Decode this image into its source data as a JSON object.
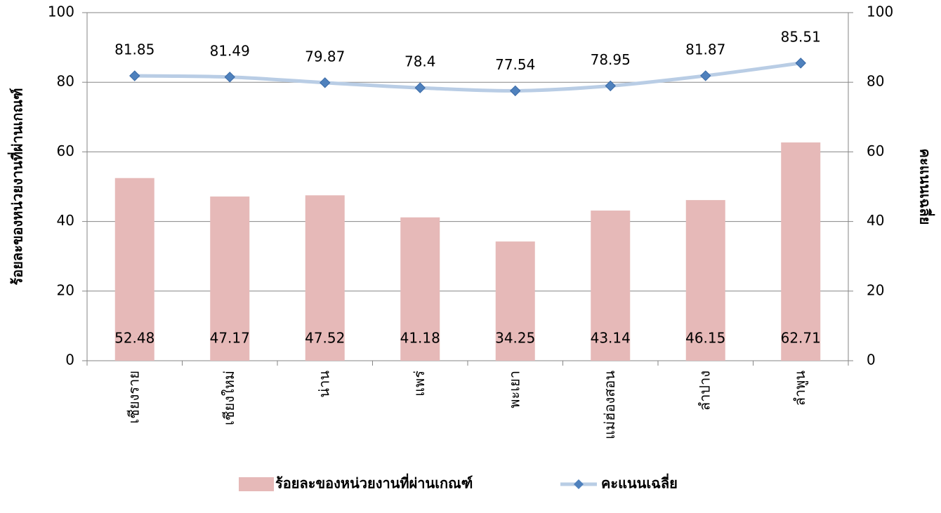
{
  "chart_data": {
    "type": "bar",
    "categories": [
      "เชียงราย",
      "เชียงใหม่",
      "น่าน",
      "แพร่",
      "พะเยา",
      "แม่ฮ่องสอน",
      "ลำปาง",
      "ลำพูน"
    ],
    "series": [
      {
        "name": "ร้อยละของหน่วยงานที่ผ่านเกณฑ์",
        "type": "bar",
        "color": "#e6b9b8",
        "values": [
          52.48,
          47.17,
          47.52,
          41.18,
          34.25,
          43.14,
          46.15,
          62.71
        ]
      },
      {
        "name": "คะแนนเฉลี่ย",
        "type": "line",
        "axis": "y2",
        "color": "#b9cde5",
        "marker_color": "#4f81bd",
        "values": [
          81.85,
          81.49,
          79.87,
          78.4,
          77.54,
          78.95,
          81.87,
          85.51
        ]
      }
    ],
    "ylabel": "ร้อยละของหน่วยงานที่ผ่านเกณฑ์",
    "y2label": "คะแนนเฉลี่ย",
    "ylim": [
      0,
      100
    ],
    "yticks": [
      0,
      20,
      40,
      60,
      80,
      100
    ],
    "y2lim": [
      0,
      100
    ],
    "y2ticks": [
      0,
      20,
      40,
      60,
      80,
      100
    ],
    "grid": true,
    "legend": "bottom"
  }
}
